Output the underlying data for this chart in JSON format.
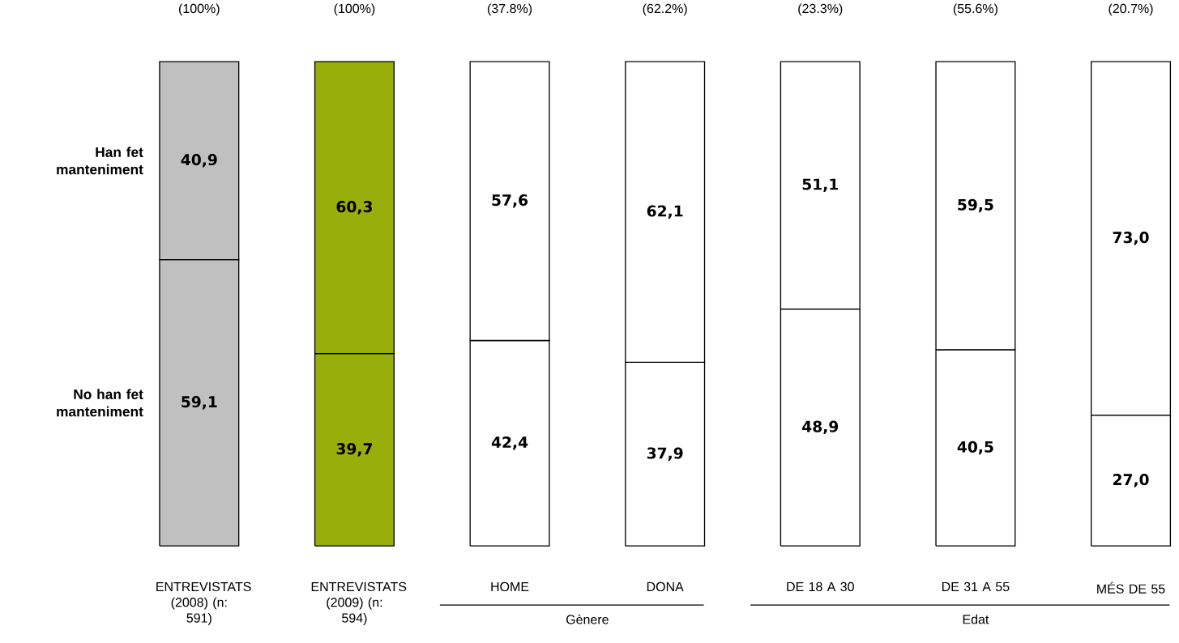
{
  "chart_data": {
    "type": "bar",
    "stacked": true,
    "categories": [
      "ENTREVISTATS (2008) (n: 591)",
      "ENTREVISTATS (2009) (n: 594)",
      "HOME",
      "DONA",
      "DE 18 A 30",
      "DE 31 A 55",
      "MÉS DE 55"
    ],
    "series": [
      {
        "name": "No han fet manteniment",
        "colors": [
          "#c0c0c0",
          "#97ae0b",
          "#ffffff",
          "#ffffff",
          "#ffffff",
          "#ffffff",
          "#ffffff"
        ],
        "values": [
          59.1,
          39.7,
          42.4,
          37.9,
          48.9,
          40.5,
          27.0
        ],
        "value_labels": [
          "59,1",
          "39,7",
          "42,4",
          "37,9",
          "48,9",
          "40,5",
          "27,0"
        ]
      },
      {
        "name": "Han fet manteniment",
        "colors": [
          "#c0c0c0",
          "#97ae0b",
          "#ffffff",
          "#ffffff",
          "#ffffff",
          "#ffffff",
          "#ffffff"
        ],
        "values": [
          40.9,
          60.3,
          57.6,
          62.1,
          51.1,
          59.5,
          73.0
        ],
        "value_labels": [
          "40,9",
          "60,3",
          "57,6",
          "62,1",
          "51,1",
          "59,5",
          "73,0"
        ]
      }
    ],
    "annotations": [
      "(100%)",
      "(100%)",
      "(37.8%)",
      "(62.2%)",
      "(23.3%)",
      "(55.6%)",
      "(20.7%)",
      "Gènere",
      "Edat"
    ]
  }
}
